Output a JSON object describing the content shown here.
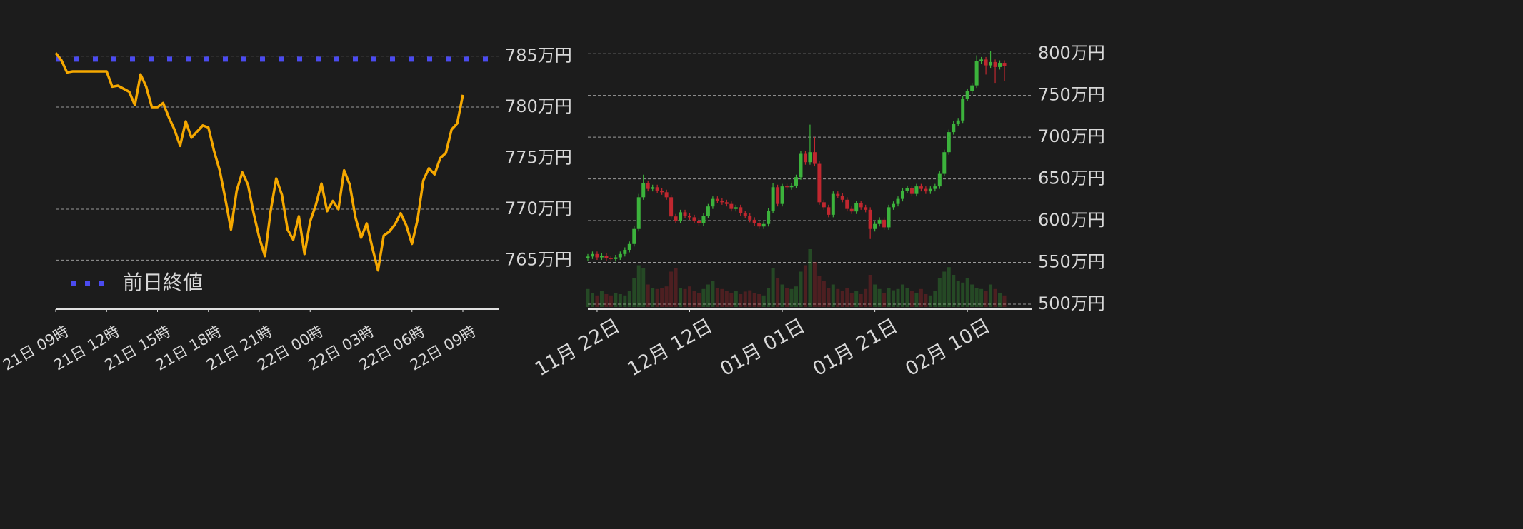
{
  "chart_data": [
    {
      "type": "line",
      "color": "#f5a800",
      "x": [
        "21日 09時",
        null,
        null,
        null,
        null,
        null,
        null,
        null,
        null,
        "21日 12時",
        null,
        null,
        null,
        null,
        null,
        null,
        null,
        null,
        "21日 15時",
        null,
        null,
        null,
        null,
        null,
        null,
        null,
        null,
        "21日 18時",
        null,
        null,
        null,
        null,
        null,
        null,
        null,
        null,
        "21日 21時",
        null,
        null,
        null,
        null,
        null,
        null,
        null,
        null,
        "22日 00時",
        null,
        null,
        null,
        null,
        null,
        null,
        null,
        null,
        "22日 03時",
        null,
        null,
        null,
        null,
        null,
        null,
        null,
        null,
        "22日 06時",
        null,
        null,
        null,
        null,
        null,
        null,
        null,
        null,
        "22日 09時"
      ],
      "values": [
        785.3,
        784.6,
        783.4,
        783.5,
        783.5,
        783.5,
        783.5,
        783.5,
        783.5,
        783.5,
        782.0,
        782.1,
        781.8,
        781.5,
        780.2,
        783.2,
        782.0,
        780.0,
        780.0,
        780.4,
        779.0,
        777.8,
        776.2,
        778.6,
        777.0,
        777.6,
        778.2,
        778.0,
        775.7,
        773.8,
        771.0,
        768.0,
        771.8,
        773.6,
        772.4,
        769.6,
        767.2,
        765.4,
        769.8,
        773.0,
        771.4,
        768.0,
        767.0,
        769.3,
        765.6,
        768.8,
        770.4,
        772.5,
        769.8,
        770.8,
        770.0,
        773.8,
        772.4,
        769.2,
        767.2,
        768.6,
        766.2,
        764.0,
        767.4,
        767.8,
        768.5,
        769.6,
        768.4,
        766.6,
        769.0,
        772.8,
        774.0,
        773.4,
        775.0,
        775.5,
        777.8,
        778.4,
        781.2
      ],
      "reference_lines": [
        {
          "name": "前日終値",
          "value": 784.7,
          "color": "#4b4bf0"
        }
      ],
      "ylim": [
        760.2,
        786.3
      ],
      "yticks": [
        {
          "value": 765,
          "label": "765万円"
        },
        {
          "value": 770,
          "label": "770万円"
        },
        {
          "value": 775,
          "label": "775万円"
        },
        {
          "value": 780,
          "label": "780万円"
        },
        {
          "value": 785,
          "label": "785万円"
        }
      ],
      "grid": true,
      "legend": "lower left"
    },
    {
      "type": "candlestick",
      "up_color": "#3cb33c",
      "down_color": "#c0272f",
      "x": [
        null,
        null,
        "11月 22日",
        null,
        null,
        null,
        null,
        null,
        null,
        null,
        null,
        null,
        null,
        null,
        null,
        null,
        null,
        null,
        null,
        null,
        null,
        null,
        "12月 12日",
        null,
        null,
        null,
        null,
        null,
        null,
        null,
        null,
        null,
        null,
        null,
        null,
        null,
        null,
        null,
        null,
        null,
        null,
        null,
        "01月 01日",
        null,
        null,
        null,
        null,
        null,
        null,
        null,
        null,
        null,
        null,
        null,
        null,
        null,
        null,
        null,
        null,
        null,
        null,
        null,
        "01月 21日",
        null,
        null,
        null,
        null,
        null,
        null,
        null,
        null,
        null,
        null,
        null,
        null,
        null,
        null,
        null,
        null,
        null,
        null,
        null,
        "02月 10日",
        null,
        null,
        null,
        null,
        null,
        null,
        null,
        null
      ],
      "open": [
        555,
        557,
        560,
        556,
        558,
        555,
        554,
        556,
        560,
        565,
        572,
        590,
        628,
        645,
        638,
        640,
        636,
        634,
        628,
        605,
        600,
        610,
        606,
        604,
        600,
        597,
        606,
        617,
        626,
        624,
        622,
        620,
        614,
        616,
        609,
        606,
        601,
        597,
        593,
        596,
        612,
        640,
        620,
        641,
        640,
        642,
        652,
        680,
        670,
        682,
        668,
        622,
        616,
        607,
        632,
        630,
        625,
        614,
        611,
        621,
        616,
        613,
        590,
        596,
        601,
        592,
        616,
        620,
        626,
        636,
        639,
        632,
        641,
        638,
        635,
        638,
        641,
        656,
        682,
        706,
        716,
        720,
        746,
        755,
        762,
        791,
        793,
        786,
        790,
        784,
        789
      ],
      "high": [
        560,
        563,
        563,
        561,
        561,
        558,
        559,
        563,
        568,
        575,
        594,
        632,
        655,
        648,
        643,
        643,
        639,
        637,
        631,
        608,
        613,
        613,
        609,
        607,
        603,
        609,
        620,
        629,
        629,
        627,
        625,
        623,
        619,
        619,
        612,
        609,
        604,
        600,
        599,
        615,
        645,
        643,
        644,
        644,
        645,
        655,
        683,
        683,
        715,
        700,
        671,
        625,
        619,
        635,
        635,
        633,
        628,
        617,
        624,
        624,
        619,
        616,
        599,
        604,
        604,
        619,
        623,
        629,
        639,
        642,
        642,
        644,
        644,
        641,
        641,
        644,
        659,
        685,
        709,
        719,
        723,
        749,
        758,
        765,
        798,
        796,
        796,
        803,
        793,
        792,
        792
      ],
      "low": [
        552,
        554,
        553,
        553,
        552,
        551,
        551,
        553,
        557,
        562,
        569,
        587,
        625,
        635,
        635,
        633,
        631,
        625,
        602,
        597,
        597,
        603,
        601,
        597,
        594,
        594,
        603,
        614,
        621,
        619,
        617,
        611,
        611,
        606,
        603,
        598,
        594,
        590,
        590,
        593,
        609,
        617,
        617,
        637,
        637,
        639,
        649,
        667,
        667,
        665,
        619,
        613,
        604,
        604,
        627,
        622,
        611,
        608,
        608,
        613,
        610,
        578,
        587,
        593,
        589,
        589,
        613,
        617,
        623,
        633,
        629,
        629,
        635,
        632,
        632,
        635,
        638,
        653,
        679,
        703,
        713,
        717,
        743,
        752,
        759,
        788,
        775,
        783,
        765,
        781,
        767
      ],
      "close": [
        557,
        560,
        556,
        558,
        555,
        554,
        556,
        560,
        565,
        572,
        590,
        628,
        645,
        638,
        640,
        636,
        634,
        628,
        605,
        600,
        610,
        606,
        604,
        600,
        597,
        606,
        617,
        626,
        624,
        622,
        620,
        614,
        616,
        609,
        606,
        601,
        597,
        593,
        596,
        612,
        640,
        620,
        641,
        640,
        642,
        652,
        680,
        670,
        682,
        668,
        622,
        616,
        607,
        632,
        630,
        625,
        614,
        611,
        621,
        616,
        613,
        590,
        596,
        601,
        592,
        616,
        620,
        626,
        636,
        639,
        632,
        641,
        638,
        635,
        638,
        641,
        656,
        682,
        706,
        716,
        720,
        746,
        755,
        762,
        791,
        793,
        786,
        790,
        784,
        789,
        785
      ],
      "volume": [
        28,
        22,
        18,
        25,
        20,
        18,
        22,
        20,
        18,
        25,
        45,
        65,
        60,
        35,
        30,
        28,
        30,
        32,
        55,
        60,
        30,
        28,
        32,
        25,
        22,
        28,
        35,
        40,
        30,
        28,
        25,
        22,
        25,
        20,
        24,
        26,
        22,
        20,
        18,
        30,
        60,
        45,
        35,
        30,
        28,
        32,
        55,
        65,
        90,
        70,
        48,
        40,
        30,
        35,
        28,
        25,
        30,
        22,
        25,
        20,
        28,
        50,
        35,
        28,
        22,
        30,
        26,
        28,
        35,
        30,
        25,
        22,
        28,
        20,
        18,
        25,
        45,
        55,
        62,
        50,
        40,
        38,
        45,
        35,
        30,
        28,
        25,
        35,
        28,
        22,
        18
      ],
      "ylim": [
        494,
        813
      ],
      "yticks": [
        {
          "value": 500,
          "label": "500万円"
        },
        {
          "value": 550,
          "label": "550万円"
        },
        {
          "value": 600,
          "label": "600万円"
        },
        {
          "value": 650,
          "label": "650万円"
        },
        {
          "value": 700,
          "label": "700万円"
        },
        {
          "value": 750,
          "label": "750万円"
        },
        {
          "value": 800,
          "label": "800万円"
        }
      ],
      "grid": true
    }
  ]
}
